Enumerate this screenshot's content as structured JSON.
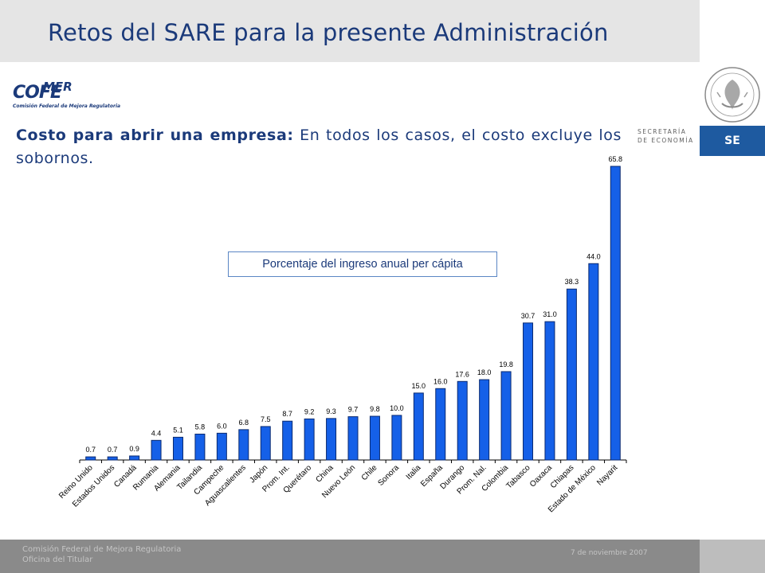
{
  "header": {
    "title": "Retos del SARE para la presente Administración"
  },
  "logo": {
    "main": "COFE",
    "accent": "MER",
    "line1": "Comisión Federal",
    "line2": "de Mejora Regulatoria"
  },
  "agency": {
    "line1": "SECRETARÍA",
    "line2": "DE ECONOMÍA",
    "badge": "SE"
  },
  "subtitle": {
    "bold": "Costo para abrir una empresa:",
    "rest": " En todos los casos, el costo excluye los sobornos."
  },
  "footer": {
    "org_line1": "Comisión Federal de Mejora Regulatoria",
    "org_line2": "Oficina del Titular",
    "date": "7 de noviembre 2007"
  },
  "colors": {
    "bar": "#1560e8",
    "title": "#1b3a7a",
    "badge": "#1e5aa0"
  },
  "icons": {
    "seal": "mexican-coat-of-arms-icon"
  },
  "chart_data": {
    "type": "bar",
    "legend": "Porcentaje del ingreso anual per cápita",
    "categories": [
      "Reino Unido",
      "Estados Unidos",
      "Canadá",
      "Rumania",
      "Alemania",
      "Tailandia",
      "Campeche",
      "Aguascalientes",
      "Japón",
      "Prom. Int.",
      "Querétaro",
      "China",
      "Nuevo León",
      "Chile",
      "Sonora",
      "Italia",
      "España",
      "Durango",
      "Prom. Nal.",
      "Colombia",
      "Tabasco",
      "Oaxaca",
      "Chiapas",
      "Estado de México",
      "Nayarit"
    ],
    "values": [
      0.7,
      0.7,
      0.9,
      4.4,
      5.1,
      5.8,
      6.0,
      6.8,
      7.5,
      8.7,
      9.2,
      9.3,
      9.7,
      9.8,
      10.0,
      15.0,
      16.0,
      17.6,
      18.0,
      19.8,
      30.7,
      31.0,
      38.3,
      44.0,
      65.8
    ],
    "labels": [
      "0.7",
      "0.7",
      "0.9",
      "4.4",
      "5.1",
      "5.8",
      "6.0",
      "6.8",
      "7.5",
      "8.7",
      "9.2",
      "9.3",
      "9.7",
      "9.8",
      "10.0",
      "15.0",
      "16.0",
      "17.6",
      "18.0",
      "19.8",
      "30.7",
      "31.0",
      "38.3",
      "44.0",
      "65.8"
    ],
    "ylim": [
      0,
      65.8
    ],
    "grid": false
  }
}
